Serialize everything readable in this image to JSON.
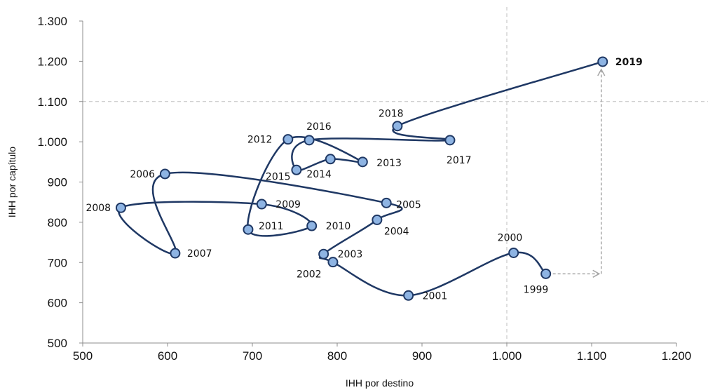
{
  "chart_data": {
    "type": "scatter",
    "xlabel": "IHH por destino",
    "ylabel": "IHH por capítulo",
    "xlim": [
      500,
      1200
    ],
    "ylim": [
      500,
      1300
    ],
    "x_ticks": [
      "500",
      "600",
      "700",
      "800",
      "900",
      "1.000",
      "1.100",
      "1.200"
    ],
    "y_ticks": [
      "500",
      "600",
      "700",
      "800",
      "900",
      "1.000",
      "1.100",
      "1.200",
      "1.300"
    ],
    "reference_lines": {
      "x": 1000,
      "y": 1100
    },
    "line_color": "#1f3864",
    "marker_color": "#8eb4e3",
    "points": [
      {
        "label": "1999",
        "x": 1046,
        "y": 672
      },
      {
        "label": "2000",
        "x": 1008,
        "y": 724
      },
      {
        "label": "2001",
        "x": 884,
        "y": 618
      },
      {
        "label": "2002",
        "x": 795,
        "y": 701
      },
      {
        "label": "2003",
        "x": 784,
        "y": 721
      },
      {
        "label": "2004",
        "x": 847,
        "y": 806
      },
      {
        "label": "2005",
        "x": 858,
        "y": 848
      },
      {
        "label": "2006",
        "x": 597,
        "y": 920
      },
      {
        "label": "2007",
        "x": 609,
        "y": 723
      },
      {
        "label": "2008",
        "x": 545,
        "y": 836
      },
      {
        "label": "2009",
        "x": 711,
        "y": 845
      },
      {
        "label": "2010",
        "x": 770,
        "y": 791
      },
      {
        "label": "2011",
        "x": 695,
        "y": 782
      },
      {
        "label": "2012",
        "x": 742,
        "y": 1006
      },
      {
        "label": "2013",
        "x": 830,
        "y": 950
      },
      {
        "label": "2014",
        "x": 792,
        "y": 957
      },
      {
        "label": "2015",
        "x": 752,
        "y": 930
      },
      {
        "label": "2016",
        "x": 767,
        "y": 1004
      },
      {
        "label": "2017",
        "x": 933,
        "y": 1004
      },
      {
        "label": "2018",
        "x": 871,
        "y": 1039
      },
      {
        "label": "2019",
        "x": 1113,
        "y": 1199
      }
    ]
  }
}
